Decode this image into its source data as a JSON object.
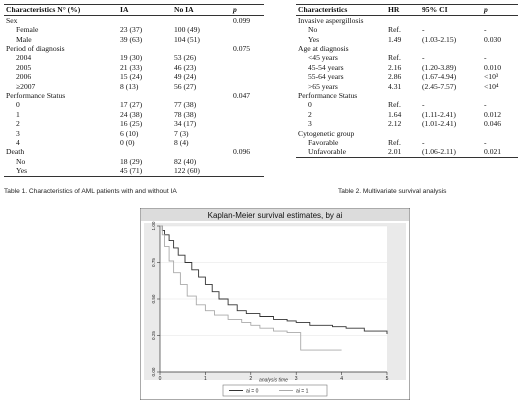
{
  "table1": {
    "headers": [
      "Characteristics N° (%)",
      "IA",
      "No IA",
      "p"
    ],
    "rows": [
      {
        "label": "Sex",
        "ia": "",
        "noia": "",
        "p": "0.099",
        "indent": false
      },
      {
        "label": "Female",
        "ia": "23 (37)",
        "noia": "100 (49)",
        "p": "",
        "indent": true
      },
      {
        "label": "Male",
        "ia": "39 (63)",
        "noia": "104 (51)",
        "p": "",
        "indent": true
      },
      {
        "label": "Period of diagnosis",
        "ia": "",
        "noia": "",
        "p": "0.075",
        "indent": false
      },
      {
        "label": "2004",
        "ia": "19 (30)",
        "noia": "53 (26)",
        "p": "",
        "indent": true
      },
      {
        "label": "2005",
        "ia": "21 (33)",
        "noia": "46 (23)",
        "p": "",
        "indent": true
      },
      {
        "label": "2006",
        "ia": "15 (24)",
        "noia": "49 (24)",
        "p": "",
        "indent": true
      },
      {
        "label": "≥2007",
        "ia": "8 (13)",
        "noia": "56 (27)",
        "p": "",
        "indent": true
      },
      {
        "label": "Performance Status",
        "ia": "",
        "noia": "",
        "p": "0.047",
        "indent": false
      },
      {
        "label": "0",
        "ia": "17 (27)",
        "noia": "77 (38)",
        "p": "",
        "indent": true
      },
      {
        "label": "1",
        "ia": "24 (38)",
        "noia": "78 (38)",
        "p": "",
        "indent": true
      },
      {
        "label": "2",
        "ia": "16 (25)",
        "noia": "34 (17)",
        "p": "",
        "indent": true
      },
      {
        "label": "3",
        "ia": "6 (10)",
        "noia": "7 (3)",
        "p": "",
        "indent": true
      },
      {
        "label": "4",
        "ia": "0 (0)",
        "noia": "8 (4)",
        "p": "",
        "indent": true
      },
      {
        "label": "Death",
        "ia": "",
        "noia": "",
        "p": "0.096",
        "indent": false
      },
      {
        "label": "No",
        "ia": "18 (29)",
        "noia": "82 (40)",
        "p": "",
        "indent": true
      },
      {
        "label": "Yes",
        "ia": "45 (71)",
        "noia": "122 (60)",
        "p": "",
        "indent": true
      }
    ],
    "caption": "Table 1. Characteristics of AML patients with and without IA"
  },
  "table2": {
    "headers": [
      "Characteristics",
      "HR",
      "95% CI",
      "p"
    ],
    "rows": [
      {
        "label": "Invasive aspergillosis",
        "hr": "",
        "ci": "",
        "p": "",
        "indent": false
      },
      {
        "label": "No",
        "hr": "Ref.",
        "ci": "-",
        "p": "-",
        "indent": true
      },
      {
        "label": "Yes",
        "hr": "1.49",
        "ci": "(1.03-2.15)",
        "p": "0.030",
        "indent": true
      },
      {
        "label": "Age at diagnosis",
        "hr": "",
        "ci": "",
        "p": "",
        "indent": false
      },
      {
        "label": "<45 years",
        "hr": "Ref.",
        "ci": "-",
        "p": "-",
        "indent": true
      },
      {
        "label": "45-54 years",
        "hr": "2.16",
        "ci": "(1.20-3.89)",
        "p": "0.010",
        "indent": true
      },
      {
        "label": "55-64 years",
        "hr": "2.86",
        "ci": "(1.67-4.94)",
        "p": "<10³",
        "indent": true
      },
      {
        "label": ">65 years",
        "hr": "4.31",
        "ci": "(2.45-7.57)",
        "p": "<10⁴",
        "indent": true
      },
      {
        "label": "Performance Status",
        "hr": "",
        "ci": "",
        "p": "",
        "indent": false
      },
      {
        "label": "0",
        "hr": "Ref.",
        "ci": "-",
        "p": "-",
        "indent": true
      },
      {
        "label": "2",
        "hr": "1.64",
        "ci": "(1.11-2.41)",
        "p": "0.012",
        "indent": true
      },
      {
        "label": "3",
        "hr": "2.12",
        "ci": "(1.01-2.41)",
        "p": "0.046",
        "indent": true
      },
      {
        "label": "Cytogenetic group",
        "hr": "",
        "ci": "",
        "p": "",
        "indent": false
      },
      {
        "label": "Favorable",
        "hr": "Ref.",
        "ci": "-",
        "p": "-",
        "indent": true
      },
      {
        "label": "Unfavorable",
        "hr": "2.01",
        "ci": "(1.06-2.11)",
        "p": "0.021",
        "indent": true
      }
    ],
    "caption": "Table 2. Multivariate survival analysis"
  },
  "chart_data": {
    "type": "line",
    "title": "Kaplan-Meier survival estimates, by ai",
    "xlabel": "analysis time",
    "ylabel": "",
    "xlim": [
      0,
      5
    ],
    "ylim": [
      0,
      1
    ],
    "xticks": [
      "0",
      "1",
      "2",
      "3",
      "4",
      "5"
    ],
    "yticks": [
      "0.00",
      "0.25",
      "0.50",
      "0.75",
      "1.00"
    ],
    "grid": "horizontal",
    "legend_position": "bottom",
    "series": [
      {
        "name": "ai = 0",
        "color": "#333333",
        "points": [
          [
            0,
            1.0
          ],
          [
            0.05,
            0.97
          ],
          [
            0.1,
            0.94
          ],
          [
            0.2,
            0.9
          ],
          [
            0.3,
            0.85
          ],
          [
            0.4,
            0.8
          ],
          [
            0.55,
            0.75
          ],
          [
            0.7,
            0.7
          ],
          [
            0.85,
            0.65
          ],
          [
            1.0,
            0.6
          ],
          [
            1.15,
            0.55
          ],
          [
            1.3,
            0.5
          ],
          [
            1.5,
            0.46
          ],
          [
            1.7,
            0.42
          ],
          [
            1.9,
            0.4
          ],
          [
            2.2,
            0.38
          ],
          [
            2.5,
            0.36
          ],
          [
            2.8,
            0.35
          ],
          [
            3.0,
            0.34
          ],
          [
            3.3,
            0.32
          ],
          [
            3.6,
            0.32
          ],
          [
            3.8,
            0.31
          ],
          [
            4.1,
            0.3
          ],
          [
            4.5,
            0.28
          ],
          [
            5.0,
            0.26
          ]
        ]
      },
      {
        "name": "ai = 1",
        "color": "#aaaaaa",
        "points": [
          [
            0,
            1.0
          ],
          [
            0.05,
            0.94
          ],
          [
            0.1,
            0.86
          ],
          [
            0.2,
            0.76
          ],
          [
            0.3,
            0.68
          ],
          [
            0.45,
            0.6
          ],
          [
            0.6,
            0.52
          ],
          [
            0.8,
            0.46
          ],
          [
            1.0,
            0.42
          ],
          [
            1.2,
            0.39
          ],
          [
            1.5,
            0.36
          ],
          [
            1.8,
            0.34
          ],
          [
            2.0,
            0.32
          ],
          [
            2.2,
            0.3
          ],
          [
            2.5,
            0.28
          ],
          [
            2.8,
            0.27
          ],
          [
            3.0,
            0.27
          ],
          [
            3.1,
            0.15
          ],
          [
            3.4,
            0.15
          ],
          [
            4.0,
            0.15
          ]
        ]
      }
    ]
  }
}
